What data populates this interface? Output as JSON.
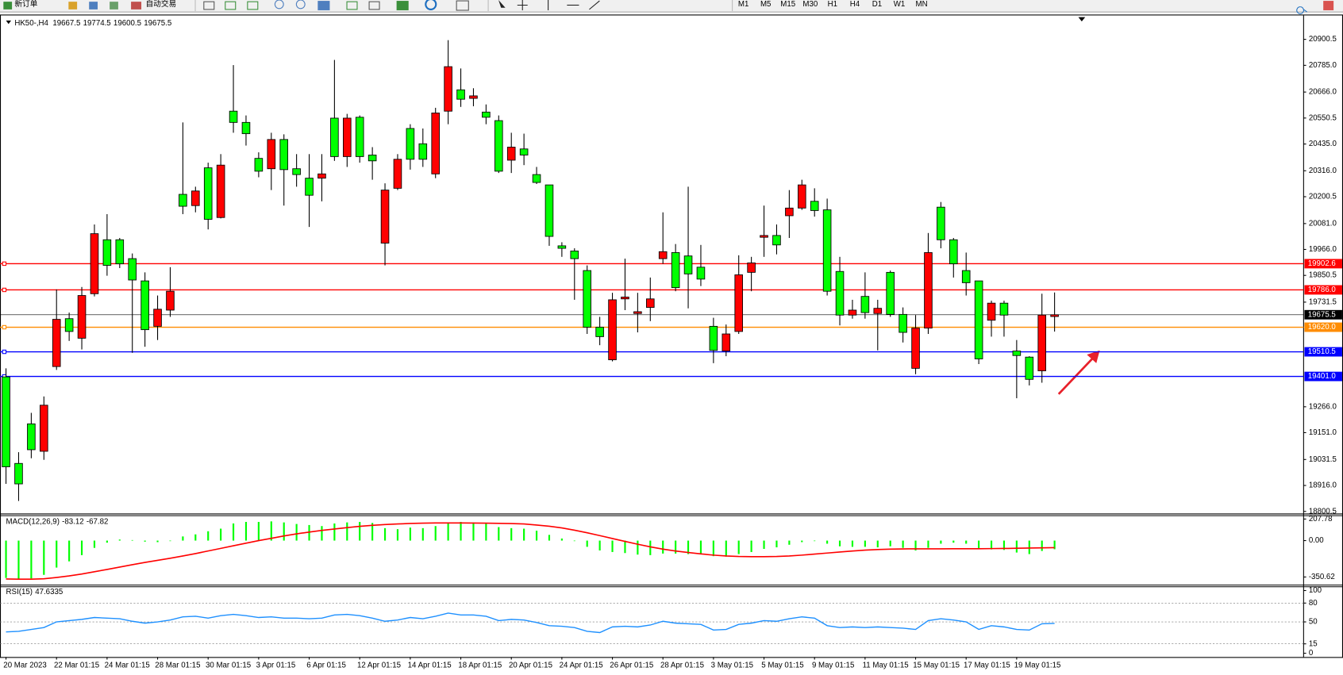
{
  "toolbar": {
    "new_order": "新订单",
    "auto_trading": "自动交易",
    "timeframes": [
      "M1",
      "M5",
      "M15",
      "M30",
      "H1",
      "H4",
      "D1",
      "W1",
      "MN"
    ]
  },
  "chart_data": [
    {
      "type": "candlestick",
      "title": "HK50-,H4",
      "categories": [
        "20 Mar 2023",
        null,
        null,
        null,
        "22 Mar 01:15",
        null,
        null,
        null,
        "24 Mar 01:15",
        null,
        null,
        null,
        "28 Mar 01:15",
        null,
        null,
        null,
        "30 Mar 01:15",
        null,
        null,
        null,
        "3 Apr 01:15",
        null,
        null,
        null,
        "6 Apr 01:15",
        null,
        null,
        null,
        "12 Apr 01:15",
        null,
        null,
        null,
        "14 Apr 01:15",
        null,
        null,
        null,
        "18 Apr 01:15",
        null,
        null,
        null,
        "20 Apr 01:15",
        null,
        null,
        null,
        "24 Apr 01:15",
        null,
        null,
        null,
        "26 Apr 01:15",
        null,
        null,
        null,
        "28 Apr 01:15",
        null,
        null,
        null,
        "3 May 01:15",
        null,
        null,
        null,
        "5 May 01:15",
        null,
        null,
        null,
        "9 May 01:15",
        null,
        null,
        null,
        "11 May 01:15",
        null,
        null,
        null,
        "15 May 01:15",
        null,
        null,
        null,
        "17 May 01:15",
        null,
        null,
        null,
        "19 May 01:15",
        null,
        null,
        null
      ],
      "open": [
        19399,
        19014,
        19190,
        19068,
        19445,
        19658,
        19571,
        19769,
        20009,
        20009,
        19925,
        19826,
        19624,
        19696,
        20211,
        20161,
        20329,
        20108,
        20581,
        20531,
        20371,
        20325,
        20455,
        20325,
        20283,
        20283,
        20550,
        20379,
        20554,
        20386,
        19994,
        20238,
        20504,
        20436,
        20302,
        20581,
        20676,
        20638,
        20577,
        20539,
        20363,
        20413,
        20299,
        20253,
        19982,
        19959,
        19872,
        19620,
        19475,
        19746,
        19681,
        19708,
        19925,
        19952,
        19937,
        19887,
        19624,
        19514,
        19601,
        19864,
        20020,
        20028,
        20116,
        20150,
        20180,
        20142,
        19868,
        19674,
        19757,
        19681,
        19864,
        19677,
        19437,
        19616,
        20154,
        20009,
        19872,
        19826,
        19651,
        19727,
        19514,
        19487,
        19426,
        19667.5
      ],
      "high": [
        19437,
        19064,
        19239,
        19312,
        19788,
        19685,
        19799,
        20077,
        20123,
        20017,
        19948,
        19864,
        19761,
        19887,
        20531,
        20245,
        20352,
        20390,
        20786,
        20562,
        20398,
        20485,
        20478,
        20390,
        20390,
        20390,
        20809,
        20569,
        20562,
        20421,
        20260,
        20390,
        20523,
        20504,
        20596,
        20897,
        20771,
        20683,
        20611,
        20562,
        20485,
        20481,
        20333,
        20253,
        19998,
        19971,
        19895,
        19666,
        19773,
        19925,
        19773,
        19841,
        20131,
        19990,
        20245,
        19986,
        19662,
        19632,
        19940,
        19933,
        20161,
        20077,
        20230,
        20276,
        20238,
        20192,
        19933,
        19742,
        19864,
        19742,
        19872,
        19708,
        19674,
        20039,
        20177,
        20017,
        19952,
        19826,
        19738,
        19738,
        19563,
        19491,
        19769,
        19774.5
      ],
      "low": [
        18923,
        18847,
        19037,
        19030,
        19430,
        19559,
        19521,
        19757,
        19849,
        19883,
        19506,
        19533,
        19563,
        19666,
        20123,
        20131,
        20055,
        20104,
        20485,
        20428,
        20287,
        20230,
        20161,
        20245,
        20066,
        20180,
        20360,
        20333,
        20352,
        20276,
        19895,
        20230,
        20321,
        20333,
        20283,
        20523,
        20600,
        20603,
        20523,
        20306,
        20306,
        20341,
        20257,
        19982,
        19933,
        19742,
        19590,
        19540,
        19468,
        19696,
        19597,
        19647,
        19902,
        19780,
        19704,
        19803,
        19460,
        19491,
        19590,
        19780,
        19933,
        19944,
        20017,
        20142,
        20112,
        19761,
        19628,
        19658,
        19658,
        19517,
        19666,
        19552,
        19411,
        19590,
        19971,
        19841,
        19761,
        19456,
        19578,
        19578,
        19304,
        19361,
        19373,
        19600.5
      ],
      "close": [
        18999,
        18923,
        19075,
        19273,
        19655,
        19601,
        19761,
        20036,
        19895,
        19902,
        19830,
        19609,
        19700,
        19780,
        20158,
        20226,
        20100,
        20341,
        20531,
        20481,
        20314,
        20455,
        20321,
        20299,
        20207,
        20302,
        20379,
        20550,
        20379,
        20360,
        20230,
        20367,
        20367,
        20367,
        20573,
        20779,
        20634,
        20649,
        20554,
        20314,
        20421,
        20386,
        20264,
        20024,
        19971,
        19925,
        19620,
        19578,
        19742,
        19754,
        19689,
        19746,
        19956,
        19796,
        19857,
        19834,
        19517,
        19590,
        19853,
        19906,
        20028,
        19986,
        20150,
        20253,
        20139,
        19780,
        19674,
        19696,
        19685,
        19704,
        19677,
        19597,
        19616,
        19952,
        20009,
        19902,
        19818,
        19479,
        19727,
        19674,
        19494,
        19388,
        19674,
        19675.5
      ],
      "colors": {
        "up": "#ff0000",
        "down": "#00ff00"
      },
      "ylim": [
        18793,
        21007
      ],
      "yticks": [
        20900.5,
        {
          "value": 20785,
          "label": "20785.0"
        },
        {
          "value": 20666,
          "label": "20666.0"
        },
        20550.5,
        {
          "value": 20435,
          "label": "20435.0"
        },
        {
          "value": 20316,
          "label": "20316.0"
        },
        20200.5,
        {
          "value": 20081,
          "label": "20081.0"
        },
        {
          "value": 19966,
          "label": "19966.0"
        },
        19850.5,
        19731.5,
        {
          "value": 19266,
          "label": "19266.0"
        },
        {
          "value": 19151,
          "label": "19151.0"
        },
        19031.5,
        {
          "value": 18916,
          "label": "18916.0"
        },
        18800.5
      ],
      "levels": [
        {
          "value": 19902.6,
          "color": "#ff0000"
        },
        {
          "value": 19786,
          "label": "19786.0",
          "color": "#ff0000"
        },
        {
          "value": 19620,
          "label": "19620.0",
          "color": "#ff8c00"
        },
        {
          "value": 19510.5,
          "color": "#0000ff"
        },
        {
          "value": 19401,
          "label": "19401.0",
          "color": "#0000ff"
        }
      ]
    },
    {
      "type": "combo",
      "title": "MACD(12,26,9)",
      "series": [
        {
          "type": "bar",
          "color": "#00ff00",
          "values": [
            -360,
            -370,
            -365,
            -330,
            -260,
            -200,
            -140,
            -70,
            -20,
            10,
            5,
            -10,
            -15,
            -5,
            40,
            60,
            90,
            115,
            165,
            180,
            180,
            185,
            175,
            160,
            150,
            140,
            165,
            175,
            180,
            170,
            120,
            110,
            125,
            120,
            140,
            175,
            180,
            175,
            165,
            130,
            120,
            115,
            95,
            55,
            20,
            -5,
            -60,
            -95,
            -110,
            -120,
            -135,
            -140,
            -125,
            -125,
            -130,
            -125,
            -150,
            -155,
            -130,
            -110,
            -80,
            -65,
            -40,
            -15,
            -5,
            -30,
            -55,
            -60,
            -60,
            -65,
            -55,
            -70,
            -95,
            -70,
            -30,
            -20,
            -30,
            -80,
            -85,
            -90,
            -115,
            -130,
            -100,
            -83.12
          ]
        },
        {
          "type": "line",
          "color": "#ff0000",
          "values": [
            -370,
            -372,
            -372,
            -368,
            -355,
            -340,
            -322,
            -300,
            -278,
            -255,
            -232,
            -210,
            -190,
            -170,
            -148,
            -125,
            -100,
            -75,
            -50,
            -25,
            0,
            22,
            45,
            65,
            82,
            98,
            112,
            125,
            137,
            147,
            155,
            160,
            165,
            168,
            170,
            170,
            170,
            169,
            168,
            166,
            164,
            160,
            150,
            138,
            122,
            100,
            75,
            48,
            20,
            -8,
            -35,
            -60,
            -82,
            -100,
            -115,
            -128,
            -140,
            -148,
            -153,
            -155,
            -155,
            -153,
            -148,
            -140,
            -130,
            -120,
            -110,
            -100,
            -92,
            -86,
            -82,
            -80,
            -79,
            -79,
            -79,
            -78,
            -78,
            -78,
            -77,
            -76,
            -74,
            -72,
            -70,
            -67.82
          ]
        }
      ],
      "ylim": [
        -420,
        240
      ],
      "yticks": [
        207.78,
        {
          "value": 0,
          "label": "0.00"
        },
        -350.62
      ]
    },
    {
      "type": "line",
      "title": "RSI(15)",
      "color": "#1e90ff",
      "values": [
        34,
        35,
        38,
        41,
        50,
        52,
        54,
        57,
        56,
        55,
        51,
        48,
        50,
        53,
        58,
        59,
        56,
        60,
        62,
        60,
        57,
        58,
        56,
        56,
        55,
        56,
        61,
        62,
        60,
        56,
        51,
        53,
        57,
        55,
        59,
        64,
        61,
        61,
        59,
        52,
        54,
        53,
        49,
        44,
        43,
        41,
        35,
        33,
        42,
        43,
        42,
        45,
        51,
        48,
        47,
        46,
        37,
        38,
        46,
        48,
        52,
        51,
        55,
        58,
        56,
        44,
        41,
        42,
        41,
        42,
        41,
        40,
        38,
        52,
        55,
        53,
        50,
        38,
        44,
        42,
        38,
        37,
        47,
        47.6335
      ],
      "ylim": [
        -6,
        106
      ],
      "yticks": [
        100,
        80,
        50,
        15,
        0
      ],
      "grid_levels": [
        80,
        50,
        15
      ]
    }
  ]
}
